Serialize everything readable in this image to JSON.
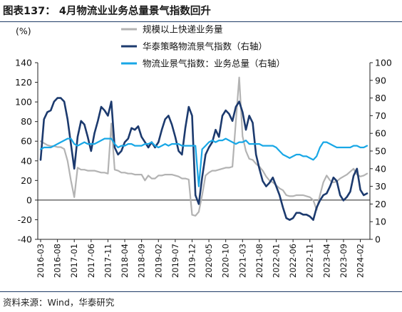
{
  "figure": {
    "title": "图表137： 4月物流业业务总量景气指数回升",
    "source": "资料来源：Wind，华泰研究"
  },
  "chart_data": {
    "type": "line",
    "unit_label": "(%)",
    "x": [
      "2016-03",
      "2016-04",
      "2016-05",
      "2016-06",
      "2016-07",
      "2016-08",
      "2016-09",
      "2016-10",
      "2016-11",
      "2016-12",
      "2017-01",
      "2017-02",
      "2017-03",
      "2017-04",
      "2017-05",
      "2017-06",
      "2017-07",
      "2017-08",
      "2017-09",
      "2017-10",
      "2017-11",
      "2017-12",
      "2018-01",
      "2018-02",
      "2018-03",
      "2018-04",
      "2018-05",
      "2018-06",
      "2018-07",
      "2018-08",
      "2018-09",
      "2018-10",
      "2018-11",
      "2018-12",
      "2019-01",
      "2019-02",
      "2019-03",
      "2019-04",
      "2019-05",
      "2019-06",
      "2019-07",
      "2019-08",
      "2019-09",
      "2019-10",
      "2019-11",
      "2019-12",
      "2020-01",
      "2020-02",
      "2020-03",
      "2020-04",
      "2020-05",
      "2020-06",
      "2020-07",
      "2020-08",
      "2020-09",
      "2020-10",
      "2020-11",
      "2020-12",
      "2021-01",
      "2021-02",
      "2021-03",
      "2021-04",
      "2021-05",
      "2021-06",
      "2021-07",
      "2021-08",
      "2021-09",
      "2021-10",
      "2021-11",
      "2021-12",
      "2022-01",
      "2022-02",
      "2022-03",
      "2022-04",
      "2022-05",
      "2022-06",
      "2022-07",
      "2022-08",
      "2022-09",
      "2022-10",
      "2022-11",
      "2022-12",
      "2023-01",
      "2023-02",
      "2023-03",
      "2023-04",
      "2023-05",
      "2023-06",
      "2023-07",
      "2023-08",
      "2023-09",
      "2023-10",
      "2023-11",
      "2023-12",
      "2024-01",
      "2024-02",
      "2024-03",
      "2024-04"
    ],
    "xtick_labels": [
      "2016-03",
      "2016-08",
      "2017-01",
      "2017-06",
      "2017-11",
      "2018-04",
      "2018-09",
      "2019-02",
      "2019-07",
      "2019-12",
      "2020-05",
      "2020-10",
      "2021-03",
      "2021-08",
      "2022-01",
      "2022-06",
      "2022-11",
      "2023-04",
      "2023-09",
      "2024-02"
    ],
    "y_left": {
      "min": -40,
      "max": 140,
      "ticks": [
        -40,
        -20,
        0,
        20,
        40,
        60,
        80,
        100,
        120,
        140
      ]
    },
    "y_right": {
      "min": 0,
      "max": 100,
      "ticks": [
        0,
        10,
        20,
        30,
        40,
        50,
        60,
        70,
        80,
        90,
        100
      ]
    },
    "series": [
      {
        "name": "规模以上快递业务量",
        "axis": "left",
        "color": "#b3b3b3",
        "values": [
          60,
          58,
          56,
          55,
          55,
          54,
          54,
          52,
          40,
          20,
          3,
          33,
          31,
          31,
          30,
          30,
          30,
          29,
          28,
          28,
          27,
          78,
          31,
          30,
          28,
          28,
          27,
          27,
          26,
          26,
          26,
          20,
          25,
          22,
          22,
          25,
          25,
          26,
          26,
          26,
          25,
          24,
          22,
          22,
          21,
          -15,
          -16,
          -12,
          5,
          25,
          28,
          30,
          30,
          31,
          32,
          33,
          33,
          34,
          80,
          125,
          65,
          50,
          42,
          41,
          37,
          34,
          30,
          24,
          20,
          18,
          15,
          12,
          10,
          5,
          4,
          4,
          5,
          5,
          5,
          4,
          3,
          0,
          -10,
          5,
          18,
          25,
          20,
          18,
          19,
          22,
          24,
          26,
          29,
          32,
          26,
          24,
          25,
          27
        ]
      },
      {
        "name": "华泰策略物流景气指数（右轴）",
        "axis": "right",
        "color": "#1c3a6e",
        "values": [
          45,
          68,
          72,
          73,
          78,
          80,
          80,
          78,
          68,
          54,
          40,
          58,
          67,
          65,
          58,
          50,
          60,
          67,
          75,
          73,
          70,
          78,
          52,
          48,
          50,
          55,
          57,
          63,
          62,
          64,
          58,
          55,
          52,
          55,
          52,
          55,
          62,
          68,
          70,
          65,
          58,
          50,
          48,
          63,
          75,
          70,
          25,
          20,
          35,
          48,
          52,
          55,
          62,
          58,
          70,
          73,
          71,
          67,
          75,
          78,
          72,
          62,
          70,
          66,
          48,
          40,
          33,
          30,
          32,
          35,
          30,
          25,
          18,
          12,
          11,
          12,
          15,
          15,
          14,
          14,
          13,
          11,
          18,
          22,
          25,
          26,
          30,
          35,
          33,
          25,
          22,
          24,
          27,
          36,
          40,
          28,
          25,
          26
        ]
      },
      {
        "name": "物流业景气指数：业务总量（右轴）",
        "axis": "right",
        "color": "#18a7e6",
        "values": [
          51,
          52,
          52,
          52,
          53,
          54,
          55,
          56,
          57,
          57,
          54,
          53,
          54,
          55,
          54,
          54,
          54,
          55,
          56,
          57,
          57,
          57,
          54,
          52,
          53,
          53,
          54,
          54,
          53,
          53,
          53,
          54,
          54,
          55,
          53,
          52,
          53,
          54,
          53,
          54,
          54,
          54,
          53,
          53,
          53,
          53,
          53,
          30,
          51,
          53,
          55,
          56,
          55,
          56,
          56,
          57,
          56,
          55,
          54,
          55,
          55,
          56,
          54,
          54,
          54,
          54,
          53,
          53,
          53,
          53,
          52,
          50,
          48,
          47,
          46,
          47,
          48,
          48,
          47,
          47,
          46,
          45,
          47,
          52,
          55,
          55,
          54,
          53,
          52,
          52,
          52,
          52,
          52,
          53,
          53,
          52,
          52,
          53
        ]
      }
    ],
    "legend_position": "top-center",
    "grid": false
  }
}
